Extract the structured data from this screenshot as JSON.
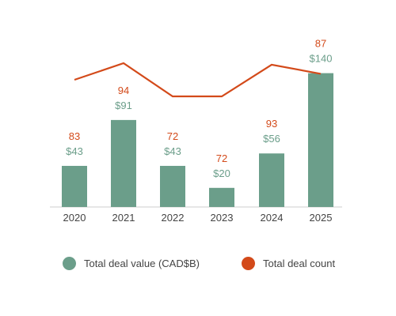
{
  "chart_data": {
    "type": "bar",
    "categories": [
      "2020",
      "2021",
      "2022",
      "2023",
      "2024",
      "2025"
    ],
    "series": [
      {
        "name": "Total deal value (CAD$B)",
        "type": "bar",
        "color": "#6b9e8a",
        "values": [
          43,
          91,
          43,
          20,
          56,
          140
        ],
        "labels": [
          "$43",
          "$91",
          "$43",
          "$20",
          "$56",
          "$140"
        ]
      },
      {
        "name": "Total deal count",
        "type": "line",
        "color": "#d34a1a",
        "values": [
          83,
          94,
          72,
          72,
          93,
          87
        ],
        "labels": [
          "83",
          "94",
          "72",
          "72",
          "93",
          "87"
        ]
      }
    ],
    "legend_position": "bottom"
  }
}
